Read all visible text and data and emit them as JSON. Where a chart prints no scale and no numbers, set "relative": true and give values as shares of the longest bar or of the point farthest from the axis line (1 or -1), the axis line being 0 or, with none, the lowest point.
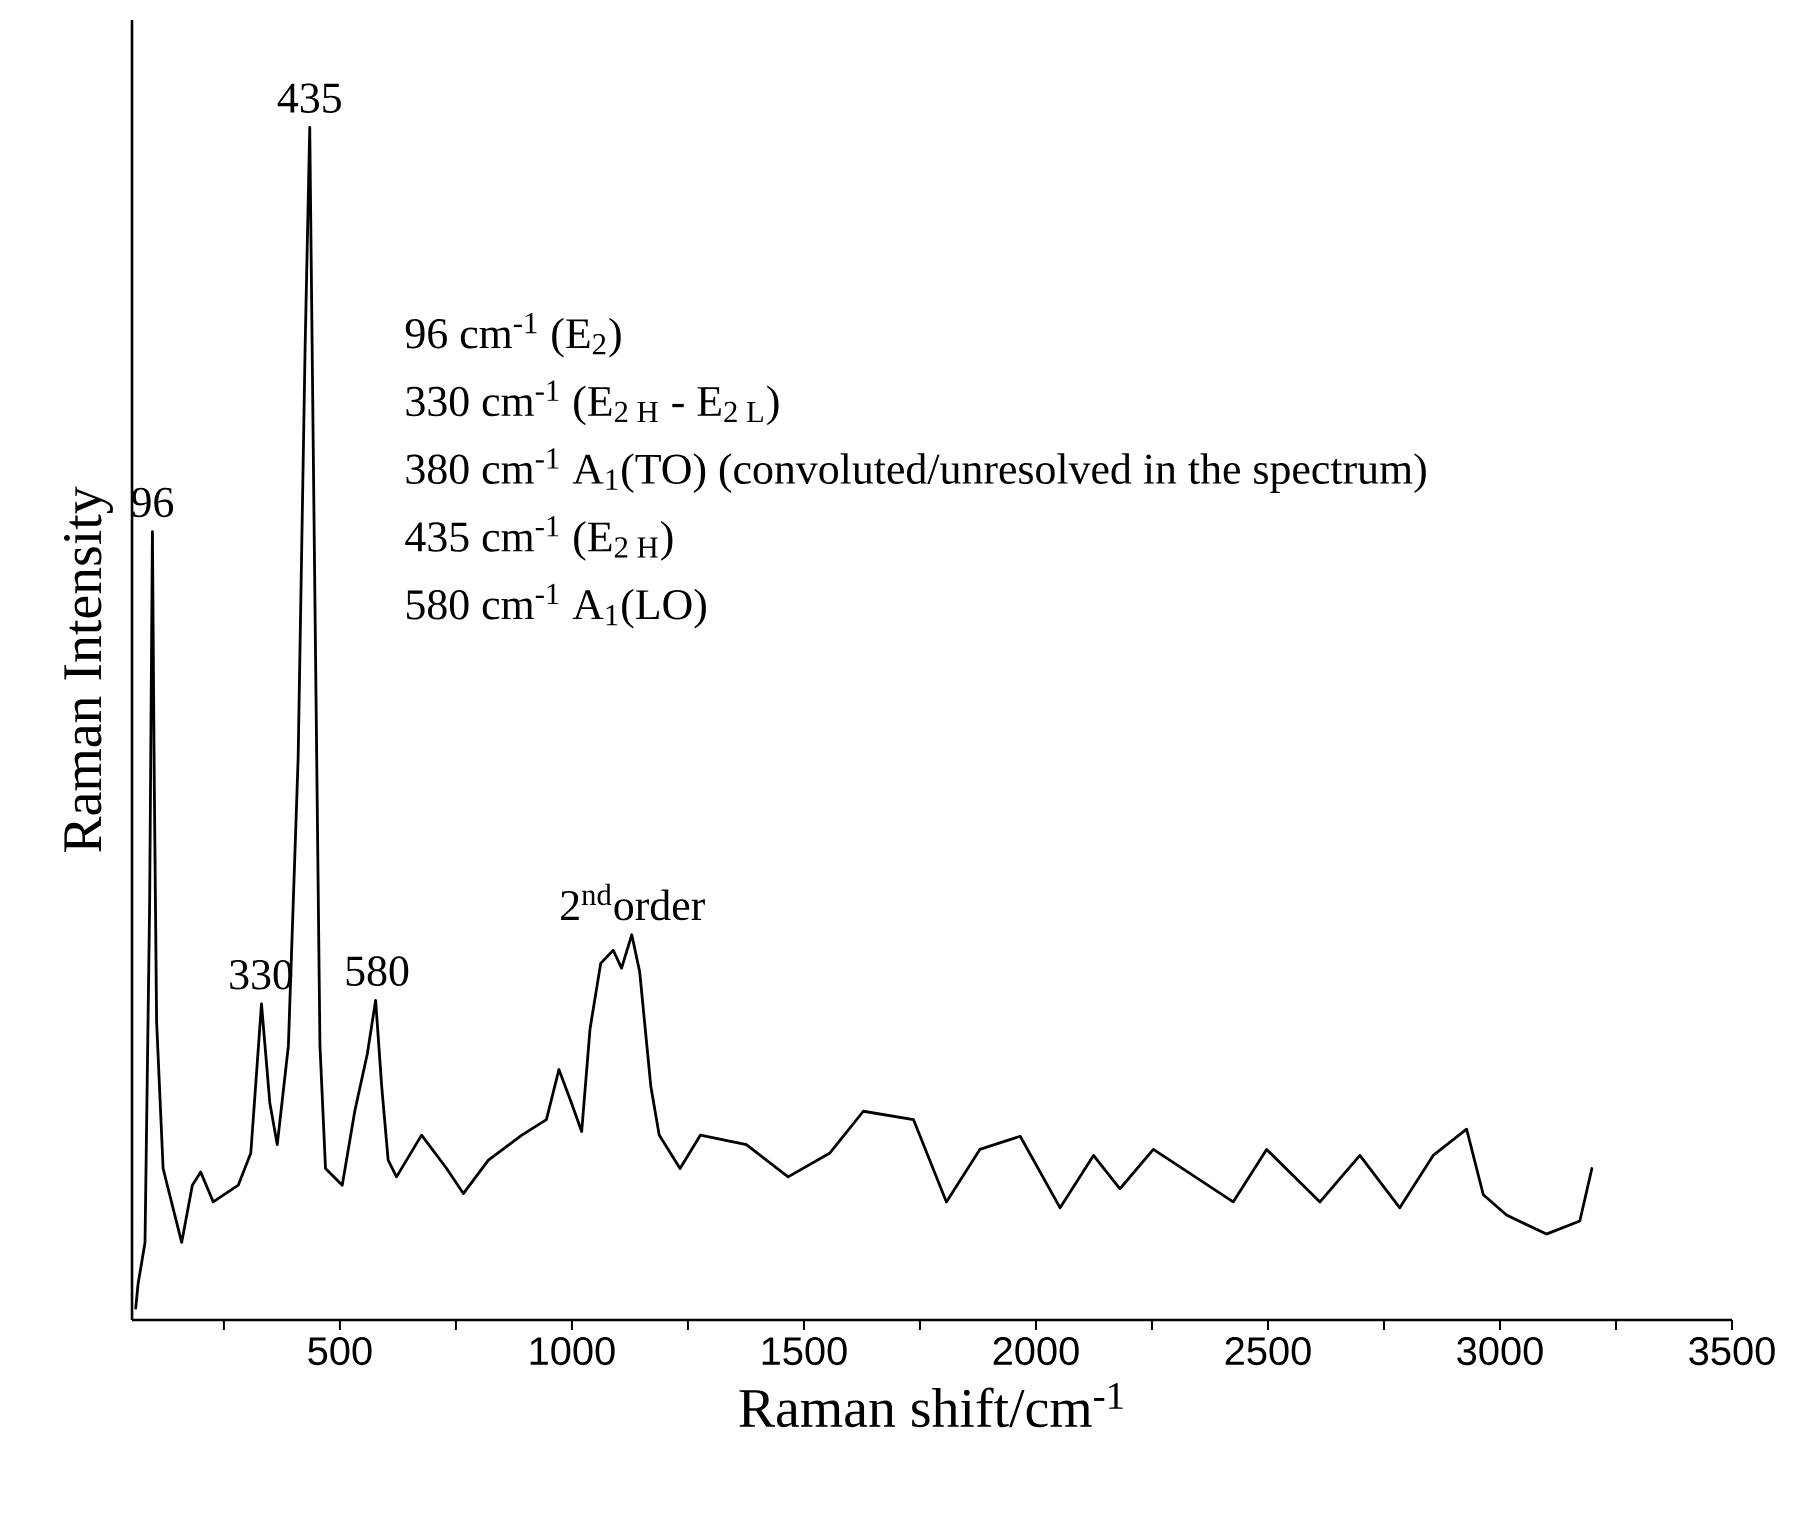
{
  "chart_data": {
    "type": "line",
    "relative": true,
    "xlabel": "Raman shift/cm$^{-1}$",
    "ylabel": "Raman Intensity",
    "color": "#000000",
    "xlim": [
      52,
      3500
    ],
    "xticks": [
      {
        "value": 250,
        "label": null
      },
      500,
      {
        "value": 750,
        "label": null
      },
      1000,
      {
        "value": 1250,
        "label": null
      },
      1500,
      {
        "value": 1750,
        "label": null
      },
      2000,
      {
        "value": 2250,
        "label": null
      },
      2500,
      {
        "value": 2750,
        "label": null
      },
      3000,
      {
        "value": 3250,
        "label": null
      },
      3500
    ],
    "x": [
      60,
      65,
      80,
      90,
      96,
      100,
      105,
      119,
      137,
      159,
      182,
      200,
      227,
      281,
      308,
      331,
      349,
      365,
      389,
      410,
      425,
      435,
      446,
      457,
      469,
      505,
      532,
      559,
      577,
      590,
      604,
      622,
      676,
      730,
      766,
      820,
      892,
      945,
      972,
      999,
      1021,
      1039,
      1062,
      1089,
      1107,
      1129,
      1146,
      1170,
      1188,
      1233,
      1277,
      1376,
      1466,
      1556,
      1628,
      1736,
      1807,
      1879,
      1966,
      2052,
      2124,
      2181,
      2253,
      2339,
      2425,
      2497,
      2612,
      2698,
      2784,
      2856,
      2928,
      2964,
      3014,
      3100,
      3172,
      3198
    ],
    "values": [
      0.01,
      0.03,
      0.065,
      0.35,
      0.661,
      0.45,
      0.25,
      0.127,
      0.099,
      0.065,
      0.113,
      0.124,
      0.099,
      0.113,
      0.14,
      0.265,
      0.182,
      0.147,
      0.23,
      0.471,
      0.815,
      1.0,
      0.609,
      0.23,
      0.127,
      0.113,
      0.175,
      0.223,
      0.268,
      0.196,
      0.134,
      0.12,
      0.155,
      0.127,
      0.106,
      0.134,
      0.155,
      0.168,
      0.21,
      0.182,
      0.158,
      0.244,
      0.299,
      0.31,
      0.295,
      0.323,
      0.292,
      0.196,
      0.155,
      0.127,
      0.155,
      0.147,
      0.12,
      0.14,
      0.175,
      0.168,
      0.099,
      0.143,
      0.154,
      0.094,
      0.138,
      0.11,
      0.143,
      0.121,
      0.099,
      0.143,
      0.099,
      0.138,
      0.094,
      0.138,
      0.16,
      0.105,
      0.088,
      0.072,
      0.083,
      0.127
    ],
    "annotations": [
      {
        "text": "96",
        "x": 96,
        "y": 0.661
      },
      {
        "text": "330",
        "x": 330,
        "y": 0.265
      },
      {
        "text": "435",
        "x": 435,
        "y": 1.0
      },
      {
        "text": "580",
        "x": 580,
        "y": 0.268
      },
      {
        "text": "2$^{nd}$order",
        "x": 1130,
        "y": 0.323
      },
      "96 cm$^{-1}$ (E$_{2}$)",
      "330 cm$^{-1}$ (E$_{2 H}$ - E$_{2 L}$)",
      "380 cm$^{-1}$ A$_{1}$(TO) (convoluted/unresolved in the spectrum)",
      "435 cm$^{-1}$ (E$_{2 H}$)",
      "580 cm$^{-1}$ A$_{1}$(LO)"
    ]
  }
}
